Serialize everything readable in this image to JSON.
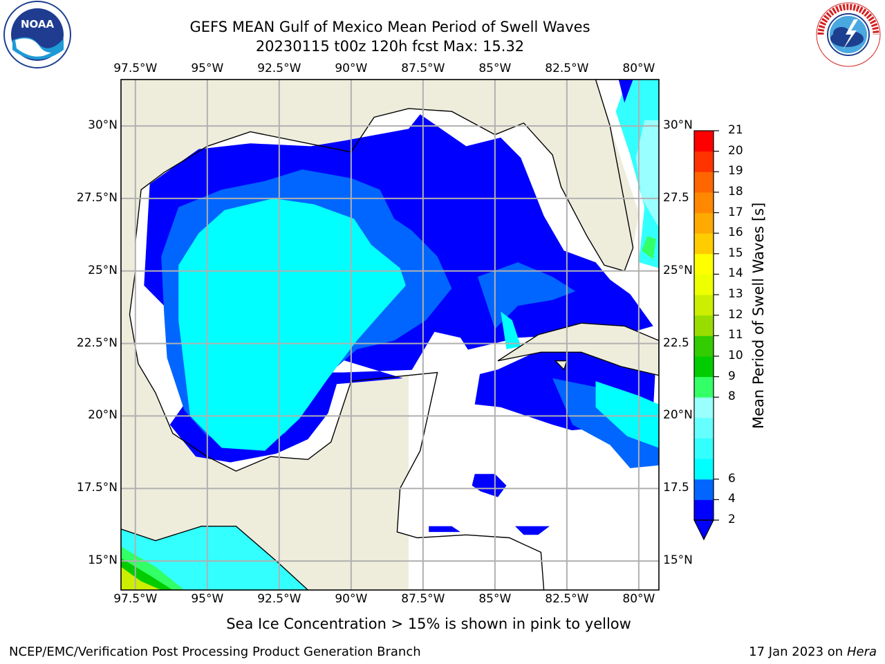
{
  "header": {
    "title": "GEFS MEAN Gulf of Mexico Mean Period of Swell Waves",
    "subtitle": "20230115 t00z 120h fcst   Max: 15.32"
  },
  "logos": {
    "left": {
      "icon": "noaa-logo",
      "text": "NOAA"
    },
    "right": {
      "icon": "nws-logo",
      "text": "NATIONAL WEATHER SERVICE"
    }
  },
  "map": {
    "lon_labels": [
      "97.5°W",
      "95°W",
      "92.5°W",
      "90°W",
      "87.5°W",
      "85°W",
      "82.5°W",
      "80°W"
    ],
    "lat_labels": [
      "30°N",
      "27.5°N",
      "25°N",
      "22.5°N",
      "20°N",
      "17.5°N",
      "15°N"
    ],
    "lat_labels_right": [
      "30°N",
      "27.5",
      "25°N",
      "22.5",
      "20°N",
      "17.5",
      "15°N"
    ],
    "extent": {
      "lon": [
        -98,
        -79.3
      ],
      "lat": [
        14,
        31.6
      ]
    },
    "colors": {
      "land": "#eeeddc",
      "ocean_masked": "#ffffff",
      "grid": "#b0b0b0"
    }
  },
  "colorbar": {
    "label": "Mean Period of Swell Waves [s]",
    "ticks": [
      "21",
      "20",
      "19",
      "18",
      "17",
      "16",
      "15",
      "14",
      "13",
      "12",
      "11",
      "10",
      "9",
      "8",
      "6",
      "4",
      "2"
    ],
    "colors": [
      "#0000ff",
      "#0066ff",
      "#00ffff",
      "#33ffff",
      "#66ffff",
      "#99ffff",
      "#33ff66",
      "#00cc00",
      "#33cc00",
      "#99dd00",
      "#ccee00",
      "#eeff00",
      "#ffff00",
      "#ffcc00",
      "#ffaa00",
      "#ff8800",
      "#ff6600",
      "#ff3300",
      "#ff0000"
    ]
  },
  "note": "Sea Ice Concentration > 15% is shown in pink to yellow",
  "footer": {
    "left": "NCEP/EMC/Verification Post Processing Product Generation Branch",
    "right_date": "17 Jan 2023 on ",
    "right_host": "Hera"
  }
}
